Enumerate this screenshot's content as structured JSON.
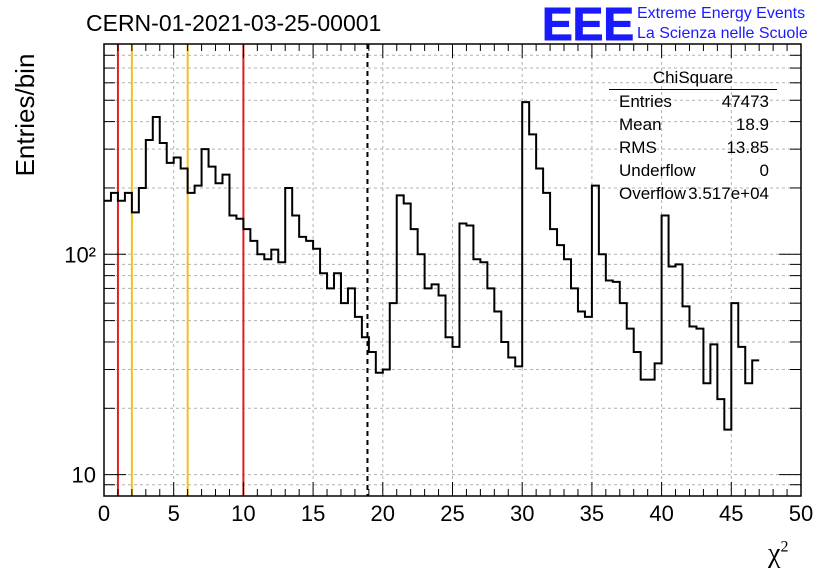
{
  "header": {
    "title": "CERN-01-2021-03-25-00001",
    "logo_text": "EEE",
    "logo_line1": "Extreme Energy Events",
    "logo_line2": "La Scienza nelle Scuole"
  },
  "stats_box": {
    "title": "ChiSquare",
    "rows": [
      {
        "key": "Entries",
        "value": "47473"
      },
      {
        "key": "Mean",
        "value": "18.9"
      },
      {
        "key": "RMS",
        "value": "13.85"
      },
      {
        "key": "Underflow",
        "value": "0"
      },
      {
        "key": "Overflow",
        "value": "3.517e+04"
      }
    ]
  },
  "colors": {
    "red_line": "#e02020",
    "yellow_line": "#f0c020",
    "logo_blue": "#1a1aff",
    "histogram": "#000000",
    "grid": "#b0b0b0"
  },
  "chart_data": {
    "type": "histogram",
    "title": "CERN-01-2021-03-25-00001",
    "xlabel": "χ²",
    "ylabel": "Entries/bin",
    "xlim": [
      0,
      50
    ],
    "ylim": [
      8,
      900
    ],
    "yscale": "log",
    "grid": true,
    "bin_width": 0.5,
    "x_ticks": [
      0,
      5,
      10,
      15,
      20,
      25,
      30,
      35,
      40,
      45,
      50
    ],
    "y_tick_labels": [
      {
        "value": 10,
        "label": "10"
      },
      {
        "value": 100,
        "label": "10²"
      }
    ],
    "values": [
      175,
      190,
      175,
      190,
      155,
      200,
      330,
      420,
      320,
      260,
      275,
      245,
      190,
      205,
      300,
      250,
      210,
      230,
      150,
      145,
      130,
      115,
      100,
      95,
      105,
      92,
      200,
      150,
      120,
      115,
      106,
      82,
      70,
      82,
      60,
      70,
      52,
      42,
      36,
      29,
      30,
      60,
      185,
      170,
      130,
      100,
      70,
      73,
      65,
      42,
      38,
      138,
      135,
      95,
      92,
      70,
      55,
      40,
      34,
      31,
      490,
      350,
      245,
      190,
      130,
      110,
      95,
      70,
      55,
      52,
      205,
      100,
      76,
      75,
      60,
      46,
      36,
      27,
      27,
      32,
      150,
      88,
      90,
      58,
      47,
      46,
      26,
      39,
      22,
      16,
      60,
      38,
      26,
      33
    ],
    "vertical_lines": [
      {
        "x": 1,
        "color": "red",
        "style": "solid"
      },
      {
        "x": 2,
        "color": "yellow",
        "style": "solid"
      },
      {
        "x": 6,
        "color": "yellow",
        "style": "solid"
      },
      {
        "x": 10,
        "color": "red",
        "style": "solid"
      },
      {
        "x": 18.9,
        "color": "black",
        "style": "dashed"
      }
    ]
  }
}
